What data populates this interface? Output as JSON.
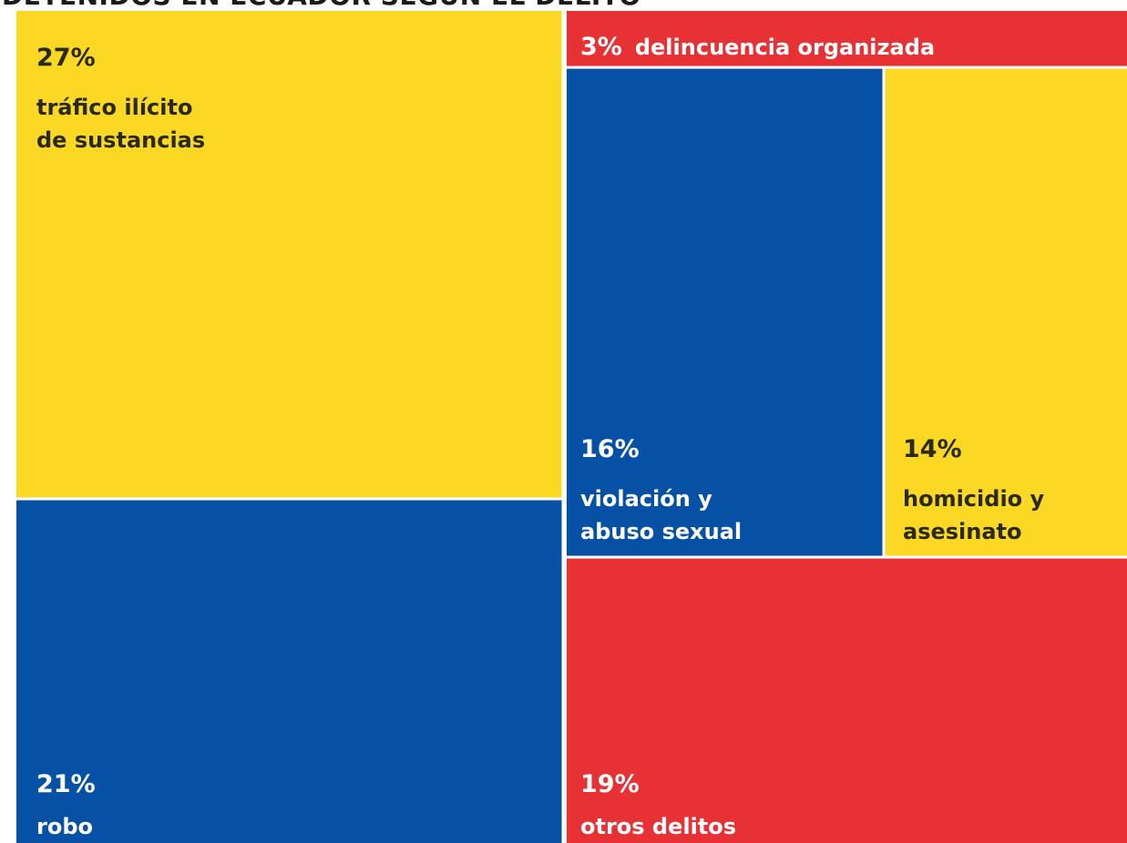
{
  "chart_data": {
    "type": "treemap",
    "title": "DETENIDOS EN ECUADOR SEGÚN EL DELITO",
    "unit": "%",
    "items": [
      {
        "key": "trafico",
        "value": 27,
        "label_lines": [
          "tráfico ilícito",
          "de sustancias"
        ],
        "color": "#fbd823",
        "text_color": "#2a2a12"
      },
      {
        "key": "robo",
        "value": 21,
        "label_lines": [
          "robo"
        ],
        "color": "#0651a5",
        "text_color": "#ffffff"
      },
      {
        "key": "delincuencia",
        "value": 3,
        "label_lines": [
          "delincuencia organizada"
        ],
        "color": "#e83135",
        "text_color": "#ffffff"
      },
      {
        "key": "violacion",
        "value": 16,
        "label_lines": [
          "violación y",
          "abuso sexual"
        ],
        "color": "#0651a5",
        "text_color": "#ffffff"
      },
      {
        "key": "homicidio",
        "value": 14,
        "label_lines": [
          "homicidio y",
          "asesinato"
        ],
        "color": "#fbd823",
        "text_color": "#2a2a12"
      },
      {
        "key": "otros",
        "value": 19,
        "label_lines": [
          "otros delitos"
        ],
        "color": "#e83135",
        "text_color": "#ffffff"
      }
    ]
  }
}
